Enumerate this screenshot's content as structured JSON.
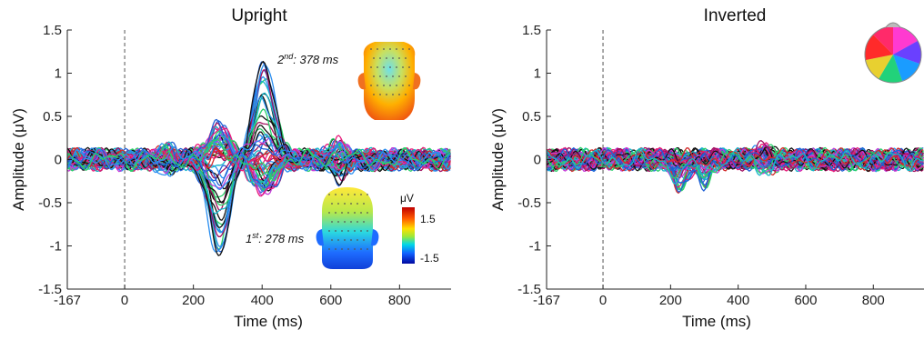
{
  "chart_data": [
    {
      "type": "line",
      "title": "Upright",
      "xlabel": "Time (ms)",
      "ylabel": "Amplitude (μV)",
      "xlim": [
        -167,
        950
      ],
      "ylim": [
        -1.5,
        1.5
      ],
      "xticks": [
        "-167",
        "0",
        "200",
        "400",
        "600",
        "800"
      ],
      "yticks": [
        "-1.5",
        "-1",
        "-0.5",
        "0",
        "0.5",
        "1",
        "1.5"
      ],
      "annotations": [
        {
          "ordinal": "2",
          "suffix": "nd",
          "text": ": 378 ms",
          "time": 378
        },
        {
          "ordinal": "1",
          "suffix": "st",
          "text": ": 278 ms",
          "time": 278
        }
      ],
      "colorbar": {
        "unit": "μV",
        "max_label": "1.5",
        "min_label": "-1.5"
      },
      "series_summary": {
        "peak_max": 1.2,
        "peak_min": -1.27,
        "components": [
          {
            "time": 278,
            "amplitude": -1.2
          },
          {
            "time": 400,
            "amplitude": 1.15
          }
        ]
      }
    },
    {
      "type": "line",
      "title": "Inverted",
      "xlabel": "Time (ms)",
      "ylabel": "Amplitude (μV)",
      "xlim": [
        -167,
        950
      ],
      "ylim": [
        -1.5,
        1.5
      ],
      "xticks": [
        "-167",
        "0",
        "200",
        "400",
        "600",
        "800"
      ],
      "yticks": [
        "-1.5",
        "-1",
        "-0.5",
        "0",
        "0.5",
        "1",
        "1.5"
      ],
      "series_summary": {
        "peak_min": -0.5,
        "components": [
          {
            "time": 220,
            "amplitude": -0.45
          },
          {
            "time": 300,
            "amplitude": -0.4
          }
        ]
      }
    }
  ],
  "colors": {
    "channel_palette": [
      "#1f5fd6",
      "#2a8ef0",
      "#17b5c9",
      "#2ad06a",
      "#e81a7a",
      "#d12a2a",
      "#a31060",
      "#111111",
      "#c43ad8"
    ],
    "zero_line": "#555555"
  },
  "icons": {
    "scalp_map_upright_2nd": "head-back-topography-icon",
    "scalp_map_upright_1st": "head-top-topography-icon",
    "scalp_map_inverted": "color-wheel-head-icon"
  }
}
